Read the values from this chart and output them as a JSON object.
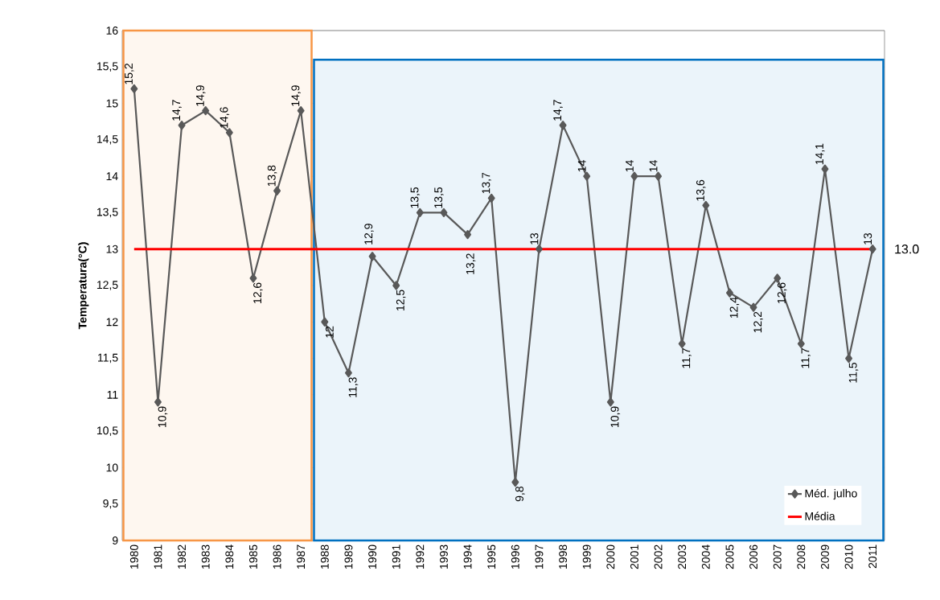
{
  "chart_data": {
    "type": "line",
    "ylabel": "Temperatura(°C)",
    "categories": [
      "1980",
      "1981",
      "1982",
      "1983",
      "1984",
      "1985",
      "1986",
      "1987",
      "1988",
      "1989",
      "1990",
      "1991",
      "1992",
      "1993",
      "1994",
      "1995",
      "1996",
      "1997",
      "1998",
      "1999",
      "2000",
      "2001",
      "2002",
      "2003",
      "2004",
      "2005",
      "2006",
      "2007",
      "2008",
      "2009",
      "2010",
      "2011"
    ],
    "series": [
      {
        "name": "Méd. julho",
        "color": "#595959",
        "marker": "diamond",
        "values": [
          15.2,
          10.9,
          14.7,
          14.9,
          14.6,
          12.6,
          13.8,
          14.9,
          12,
          11.3,
          12.9,
          12.5,
          13.5,
          13.5,
          13.2,
          13.7,
          9.8,
          13,
          14.7,
          14,
          10.9,
          14,
          14,
          11.7,
          13.6,
          12.4,
          12.2,
          12.6,
          11.7,
          14.1,
          11.5,
          13
        ],
        "value_labels": [
          "15,2",
          "10,9",
          "14,7",
          "14,9",
          "14,6",
          "12,6",
          "13,8",
          "14,9",
          "12",
          "11,3",
          "12,9",
          "12,5",
          "13,5",
          "13,5",
          "13,2",
          "13,7",
          "9,8",
          "13",
          "14,7",
          "14",
          "10,9",
          "14",
          "14",
          "11,7",
          "13,6",
          "12,4",
          "12,2",
          "12,6",
          "11,7",
          "14,1",
          "11,5",
          "13"
        ]
      },
      {
        "name": "Média",
        "color": "#ff0000",
        "marker": "none",
        "values": [
          13,
          13,
          13,
          13,
          13,
          13,
          13,
          13,
          13,
          13,
          13,
          13,
          13,
          13,
          13,
          13,
          13,
          13,
          13,
          13,
          13,
          13,
          13,
          13,
          13,
          13,
          13,
          13,
          13,
          13,
          13,
          13
        ]
      }
    ],
    "ylim": [
      9,
      16
    ],
    "yticks": [
      9,
      {
        "value": 9.5,
        "label": "9,5"
      },
      10,
      {
        "value": 10.5,
        "label": "10,5"
      },
      11,
      {
        "value": 11.5,
        "label": "11,5"
      },
      12,
      {
        "value": 12.5,
        "label": "12,5"
      },
      13,
      {
        "value": 13.5,
        "label": "13,5"
      },
      14,
      {
        "value": 14.5,
        "label": "14,5"
      },
      15,
      {
        "value": 15.5,
        "label": "15,5"
      },
      16
    ],
    "grid": "y",
    "legend": "bottom right",
    "line_style": "solid",
    "annotations": [
      {
        "text": "13.0",
        "x": "2011",
        "y": 13
      }
    ],
    "bands": [
      {
        "axis": "x",
        "from": "1980",
        "to": "1987",
        "color": "#f79646"
      },
      {
        "axis": "x",
        "from": "1988",
        "to": "2011",
        "color": "#0070c0"
      }
    ]
  }
}
